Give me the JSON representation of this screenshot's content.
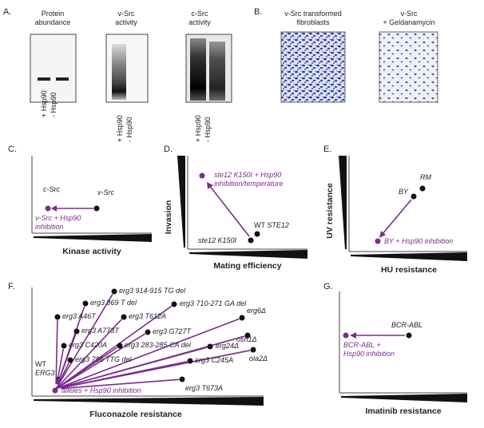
{
  "panel_a": {
    "label": "A.",
    "columns": [
      {
        "title": [
          "Protein",
          "abundance"
        ],
        "lanes": [
          "+ Hsp90",
          "- Hsp90"
        ]
      },
      {
        "title": [
          "v-Src",
          "activity"
        ],
        "lanes": [
          "+ Hsp90",
          "- Hsp90"
        ]
      },
      {
        "title": [
          "c-Src",
          "activity"
        ],
        "lanes": [
          "+ Hsp90",
          "- Hsp90"
        ]
      }
    ]
  },
  "panel_b": {
    "label": "B.",
    "images": [
      {
        "title": [
          "v-Src transformed",
          "fibroblasts"
        ]
      },
      {
        "title": [
          "v-Src",
          "+ Geldanamycin"
        ]
      }
    ]
  },
  "panel_c": {
    "label": "C.",
    "points": [
      "c-Src",
      "v-Src"
    ],
    "treated": [
      "v-Src + Hsp90",
      "inhibition"
    ],
    "x_axis": "Kinase activity"
  },
  "panel_d": {
    "label": "D.",
    "treated": [
      "ste12 K150I + Hsp90",
      "inhibition/temperature"
    ],
    "wt": "WT",
    "wt_gene": "STE12",
    "mutant": "ste12 K150I",
    "y_axis": "Invasion",
    "x_axis": "Mating efficiency"
  },
  "panel_e": {
    "label": "E.",
    "points": [
      "RM",
      "BY"
    ],
    "treated": "BY + Hsp90 inhibition",
    "y_axis": "UV resistance",
    "x_axis": "HU resistance"
  },
  "panel_f": {
    "label": "F.",
    "alleles": [
      "erg3 914-915 TG del",
      "erg3 869 T del",
      "erg3 710-271 GA del",
      "erg3 A46T",
      "erg3 T612A",
      "erg6Δ",
      "erg3 A773T",
      "erg3 G727T",
      "erg3 C420A",
      "erg3 283-285 CA del",
      "erg24Δ",
      "osh1Δ",
      "erg3 786 TTG del",
      "erg3 C245A",
      "ola2Δ",
      "erg3 T673A"
    ],
    "wt": "WT",
    "wt_gene": "ERG3",
    "treated": "alleles + Hsp90 inhibition",
    "x_axis": "Fluconazole resistance"
  },
  "panel_g": {
    "label": "G.",
    "point": "BCR-ABL",
    "treated": [
      "BCR-ABL +",
      "Hsp90 inhibition"
    ],
    "x_axis": "Imatinib resistance"
  }
}
